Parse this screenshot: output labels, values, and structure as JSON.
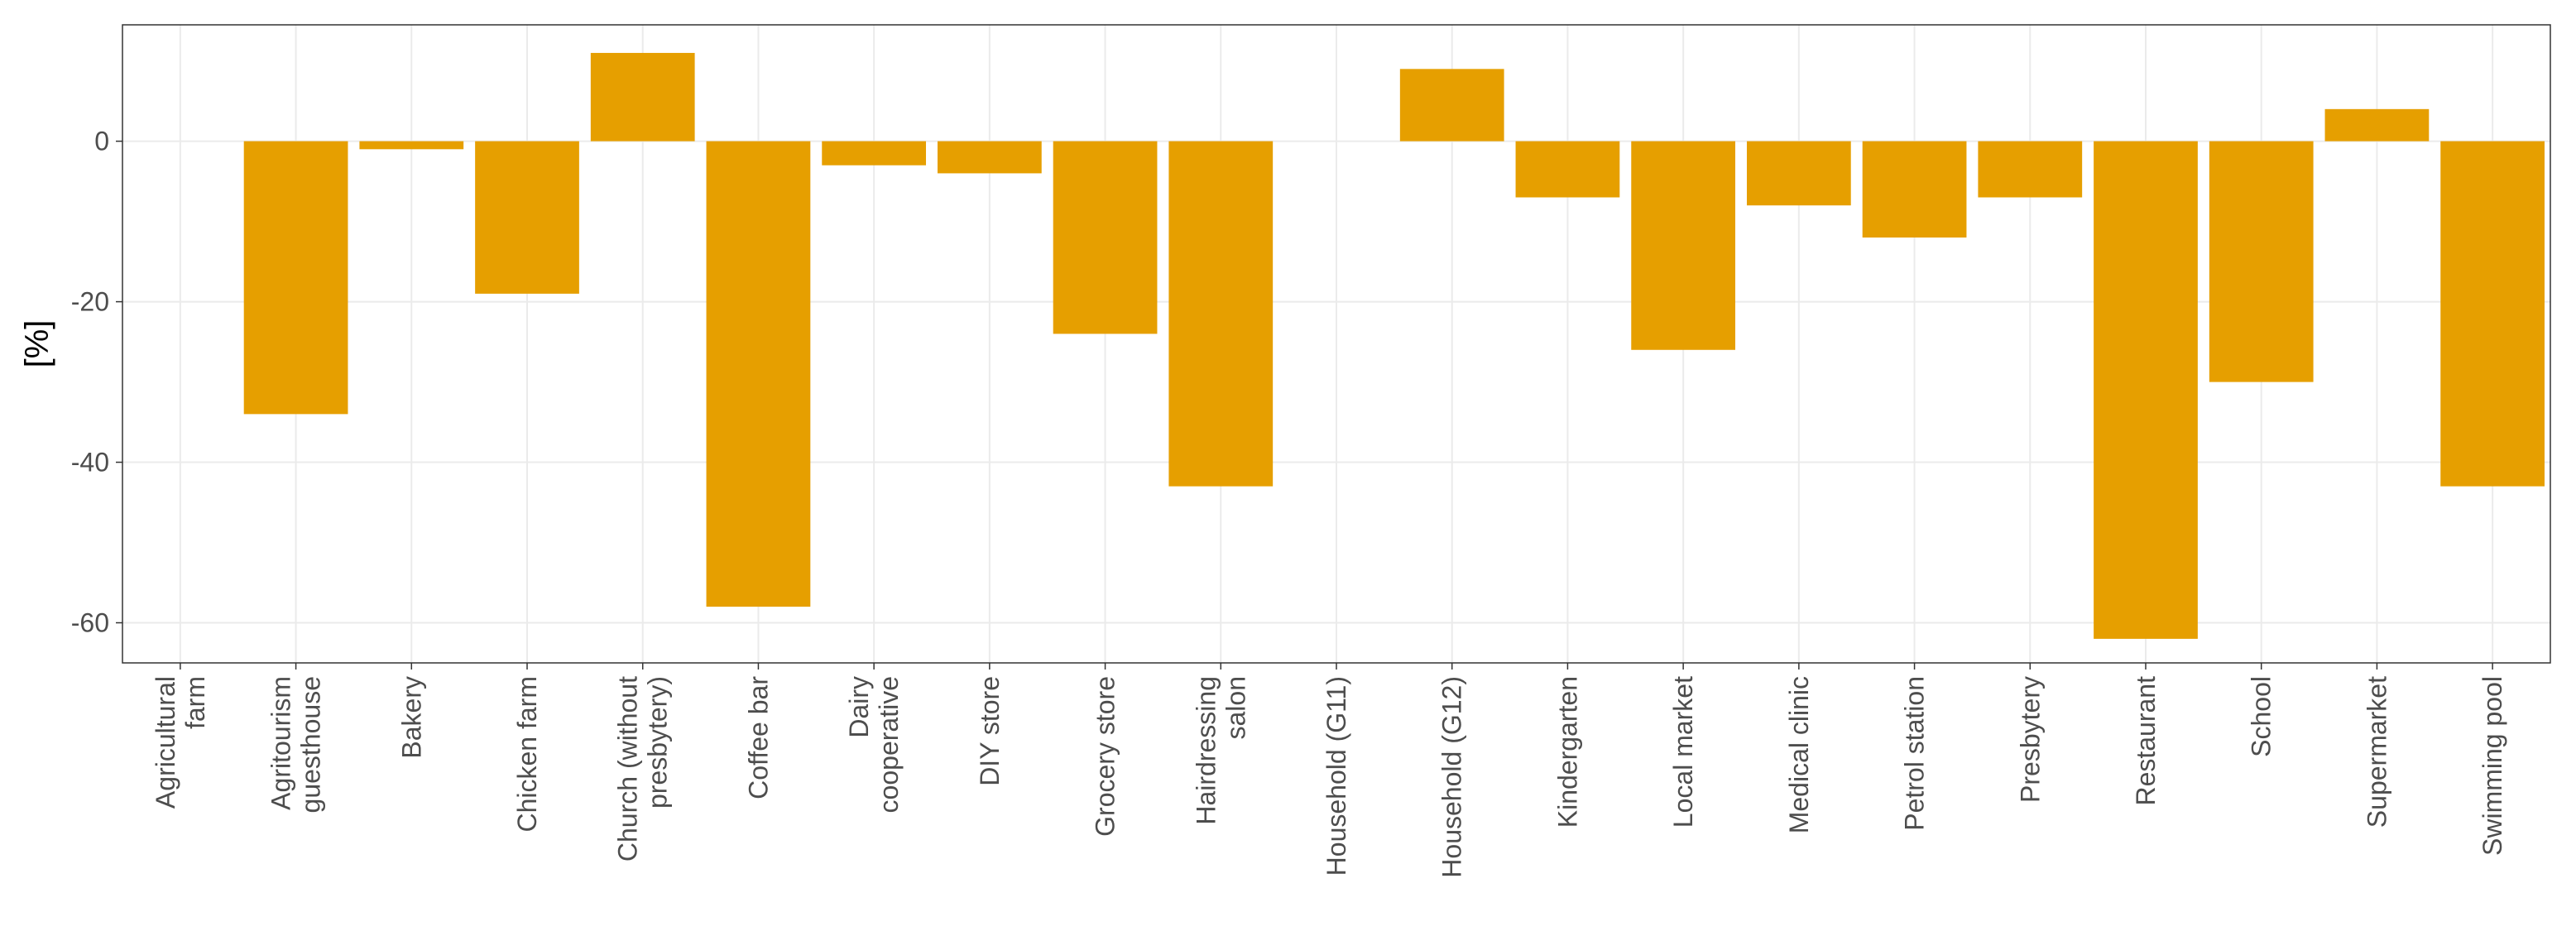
{
  "chart_data": {
    "type": "bar",
    "title": "",
    "xlabel": "",
    "ylabel": "[%]",
    "ylim": [
      -65,
      14.5
    ],
    "yticks": [
      0,
      -20,
      -40,
      -60
    ],
    "grid": true,
    "bar_color": "#E69F00",
    "categories": [
      "Agricultural farm",
      "Agritourism guesthouse",
      "Bakery",
      "Chicken farm",
      "Church (without presbytery)",
      "Coffee bar",
      "Dairy cooperative",
      "DIY store",
      "Grocery store",
      "Hairdressing salon",
      "Household (G11)",
      "Household (G12)",
      "Kindergarten",
      "Local market",
      "Medical clinic",
      "Petrol station",
      "Presbytery",
      "Restaurant",
      "School",
      "Supermarket",
      "Swimming pool"
    ],
    "category_label_lines": [
      [
        "Agricultural",
        "farm"
      ],
      [
        "Agritourism",
        "guesthouse"
      ],
      [
        "Bakery"
      ],
      [
        "Chicken farm"
      ],
      [
        "Church (without",
        "presbytery)"
      ],
      [
        "Coffee bar"
      ],
      [
        "Dairy",
        "cooperative"
      ],
      [
        "DIY store"
      ],
      [
        "Grocery store"
      ],
      [
        "Hairdressing",
        "salon"
      ],
      [
        "Household (G11)"
      ],
      [
        "Household (G12)"
      ],
      [
        "Kindergarten"
      ],
      [
        "Local market"
      ],
      [
        "Medical clinic"
      ],
      [
        "Petrol station"
      ],
      [
        "Presbytery"
      ],
      [
        "Restaurant"
      ],
      [
        "School"
      ],
      [
        "Supermarket"
      ],
      [
        "Swimming pool"
      ]
    ],
    "values": [
      0,
      -34,
      -1,
      -19,
      11,
      -58,
      -3,
      -4,
      -24,
      -43,
      0,
      9,
      -7,
      -26,
      -8,
      -12,
      -7,
      -62,
      -30,
      4,
      -43
    ]
  }
}
